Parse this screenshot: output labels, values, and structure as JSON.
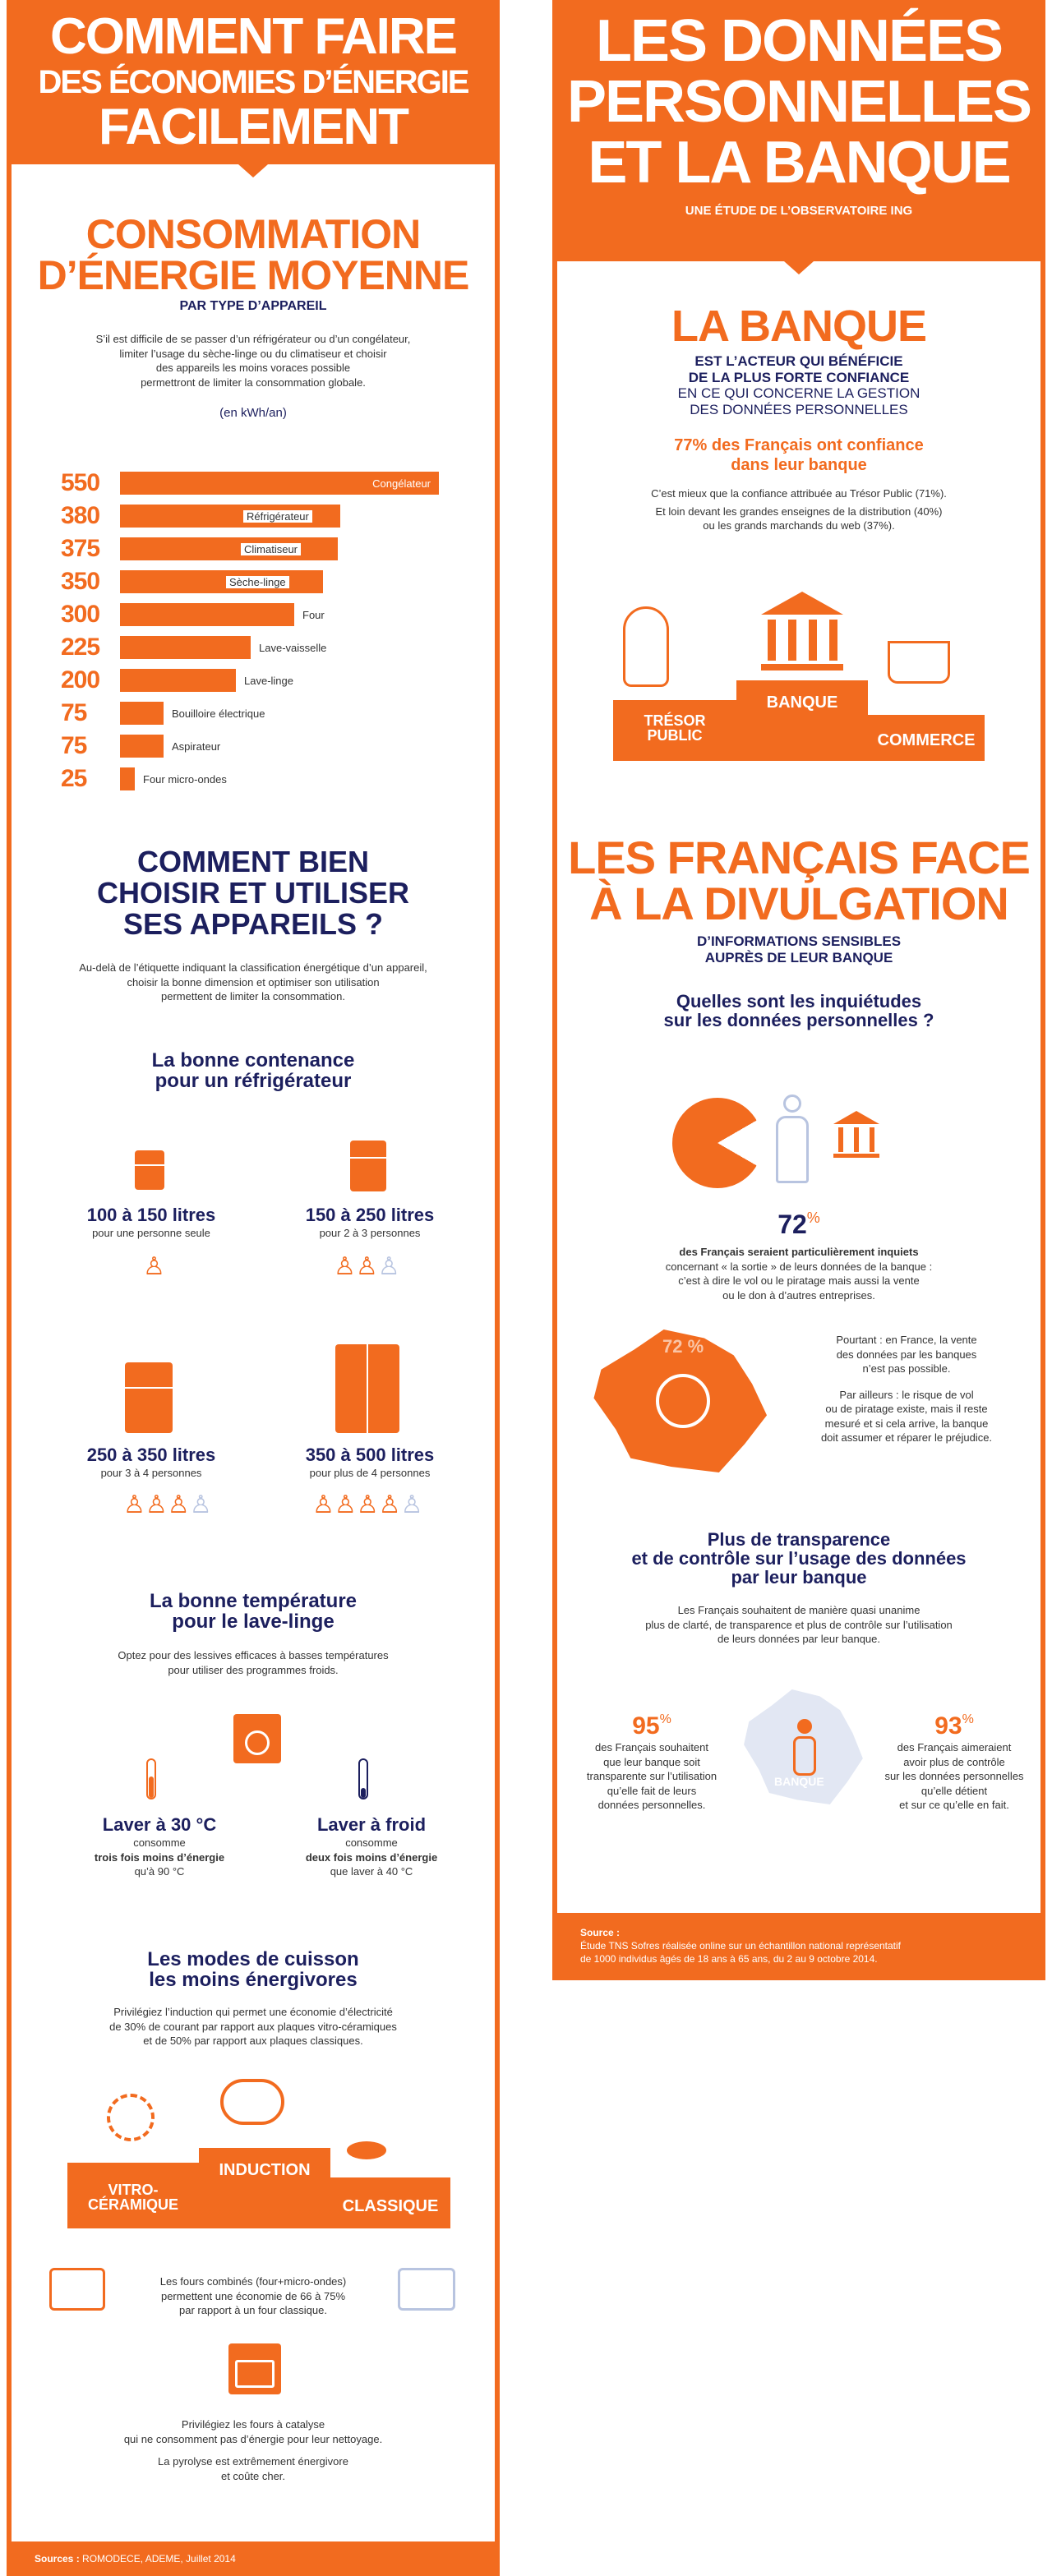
{
  "left": {
    "banner": {
      "line1": "COMMENT FAIRE",
      "line2": "DES ÉCONOMIES D’ÉNERGIE",
      "line3": "FACILEMENT"
    },
    "conso": {
      "title1": "CONSOMMATION",
      "title2": "D’ÉNERGIE MOYENNE",
      "subtitle": "PAR TYPE D’APPAREIL",
      "text1": "S’il est difficile de se passer d’un réfrigérateur ou d’un congélateur,",
      "text2": "limiter l’usage du sèche-linge ou du climatiseur et choisir",
      "text3": "des appareils les moins voraces possible",
      "text4": "permettront de limiter la consommation globale.",
      "unit": "(en kWh/an)"
    },
    "choisir": {
      "title1": "COMMENT BIEN",
      "title2": "CHOISIR ET UTILISER",
      "title3": "SES APPAREILS ?",
      "text1": "Au-delà de l’étiquette indiquant la classification énergétique d’un appareil,",
      "text2": "choisir la bonne dimension et optimiser son utilisation",
      "text3": "permettent de limiter la consommation."
    },
    "frigo": {
      "title1": "La bonne contenance",
      "title2": "pour un réfrigérateur",
      "items": [
        {
          "size": "100 à 150 litres",
          "who": "pour une personne seule"
        },
        {
          "size": "150 à 250 litres",
          "who": "pour 2 à 3 personnes"
        },
        {
          "size": "250 à 350 litres",
          "who": "pour 3 à 4 personnes"
        },
        {
          "size": "350 à 500 litres",
          "who": "pour plus de 4 personnes"
        }
      ]
    },
    "lavage": {
      "title1": "La bonne température",
      "title2": "pour le lave-linge",
      "text1": "Optez pour des lessives efficaces à basses températures",
      "text2": "pour utiliser des programmes froids.",
      "a_title": "Laver à 30 °C",
      "a_l1": "consomme",
      "a_l2": "trois fois moins d’énergie",
      "a_l3": "qu’à 90 °C",
      "b_title": "Laver à froid",
      "b_l1": "consomme",
      "b_l2": "deux fois moins d’énergie",
      "b_l3": "que laver à 40 °C"
    },
    "cuisson": {
      "title1": "Les modes de cuisson",
      "title2": "les moins énergivores",
      "text1": "Privilégiez l’induction qui permet une économie d’électricité",
      "text2": "de 30% de courant par rapport aux plaques vitro-céramiques",
      "text3": "et de 50% par rapport aux plaques classiques.",
      "podium_vitro1": "VITRO-",
      "podium_vitro2": "CÉRAMIQUE",
      "podium_induction": "INDUCTION",
      "podium_classique": "CLASSIQUE",
      "fours1": "Les fours combinés (four+micro-ondes)",
      "fours2": "permettent une économie de 66 à 75%",
      "fours3": "par rapport à un four classique.",
      "catalyse1": "Privilégiez les fours à catalyse",
      "catalyse2": "qui ne consomment pas d’énergie pour leur nettoyage.",
      "pyrolyse1": "La pyrolyse est extrêmement énergivore",
      "pyrolyse2": "et coûte cher."
    },
    "sources_label": "Sources :",
    "sources_text": "ROMODECE, ADEME, Juillet 2014"
  },
  "right": {
    "banner": {
      "line1": "LES DONNÉES",
      "line2": "PERSONNELLES",
      "line3": "ET LA BANQUE",
      "sub": "UNE ÉTUDE DE L’OBSERVATOIRE ING"
    },
    "banque": {
      "title": "LA BANQUE",
      "sub1": "EST L’ACTEUR QUI BÉNÉFICIE",
      "sub2": "DE LA PLUS FORTE CONFIANCE",
      "sub3": "EN CE QUI CONCERNE LA GESTION",
      "sub4": "DES DONNÉES PERSONNELLES",
      "stat1": "77% des Français ont confiance",
      "stat2": "dans leur banque",
      "text1": "C’est mieux que la confiance attribuée au Trésor Public (71%).",
      "text2": "Et loin devant les grandes enseignes de la distribution (40%)",
      "text3": "ou les grands marchands du web (37%).",
      "podium_tresor1": "TRÉSOR",
      "podium_tresor2": "PUBLIC",
      "podium_banque": "BANQUE",
      "podium_commerce": "COMMERCE"
    },
    "divulgation": {
      "title1": "LES FRANÇAIS FACE",
      "title2": "À LA DIVULGATION",
      "sub1": "D’INFORMATIONS SENSIBLES",
      "sub2": "AUPRÈS DE LEUR BANQUE",
      "q1": "Quelles sont les inquiétudes",
      "q2": "sur les données personnelles ?",
      "pct": "72",
      "pct_sign": "%",
      "t1": "des Français seraient particulièrement inquiets",
      "t2": "concernant « la sortie » de leurs données de la banque :",
      "t3": "c’est à dire le vol ou le piratage mais aussi la vente",
      "t4": "ou le don à d’autres entreprises.",
      "map_pct": "72 %",
      "pourtant1": "Pourtant : en France, la vente",
      "pourtant2": "des données par les banques",
      "pourtant3": "n’est pas possible.",
      "ailleurs1": "Par ailleurs : le risque de vol",
      "ailleurs2": "ou de piratage existe, mais il reste",
      "ailleurs3": "mesuré et si cela arrive, la banque",
      "ailleurs4": "doit assumer et réparer le préjudice."
    },
    "transparence": {
      "title1": "Plus de transparence",
      "title2": "et de contrôle sur l’usage des données",
      "title3": "par leur banque",
      "text1": "Les Français souhaitent de manière quasi unanime",
      "text2": "plus de clarté, de transparence et plus de contrôle sur l’utilisation",
      "text3": "de leurs données par leur banque.",
      "l_pct": "95",
      "l_sign": "%",
      "l1": "des Français souhaitent",
      "l2": "que leur banque soit",
      "l3": "transparente sur l’utilisation",
      "l4": "qu’elle fait de leurs",
      "l5": "données personnelles.",
      "r_pct": "93",
      "r_sign": "%",
      "r1": "des Français aimeraient",
      "r2": "avoir plus de contrôle",
      "r3": "sur les données personnelles",
      "r4": "qu’elle détient",
      "r5": "et sur ce qu’elle en fait.",
      "map_label": "BANQUE"
    },
    "source_label": "Source :",
    "source1": "Étude TNS Sofres réalisée online sur un échantillon national représentatif",
    "source2": "de 1000 individus âgés de 18 ans à 65 ans, du 2 au 9 octobre 2014."
  },
  "chart_data": {
    "type": "bar",
    "categories": [
      "Congélateur",
      "Réfrigérateur",
      "Climatiseur",
      "Sèche-linge",
      "Four",
      "Lave-vaisselle",
      "Lave-linge",
      "Bouilloire électrique",
      "Aspirateur",
      "Four micro-ondes"
    ],
    "values": [
      550,
      380,
      375,
      350,
      300,
      225,
      200,
      75,
      75,
      25
    ],
    "value_labels": [
      "550",
      "380",
      "375",
      "350",
      "300",
      "225",
      "200",
      "75",
      "75",
      "25"
    ],
    "orientation": "horizontal",
    "color": "#f26b1f",
    "title": "",
    "xlabel": "",
    "ylabel": ""
  },
  "colors": {
    "accent": "#f26b1f",
    "navy": "#1c1f5e"
  }
}
